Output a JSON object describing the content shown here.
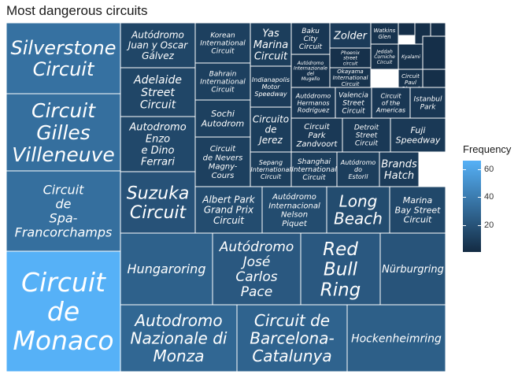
{
  "chart_data": {
    "type": "treemap",
    "title": "Most dangerous circuits",
    "legend": {
      "title": "Frequency",
      "ticks": [
        20,
        40,
        60
      ],
      "min": 1,
      "max": 66,
      "placement": "right"
    },
    "colors": {
      "low": "#132b43",
      "high": "#56b1f7",
      "border": "#ffffff"
    },
    "items": [
      {
        "name": "Circuit de Monaco",
        "value": 66
      },
      {
        "name": "Silverstone Circuit",
        "value": 35
      },
      {
        "name": "Circuit Gilles Villeneuve",
        "value": 34
      },
      {
        "name": "Circuit de Spa-Francorchamps",
        "value": 34
      },
      {
        "name": "Autodromo Nazionale di Monza",
        "value": 30
      },
      {
        "name": "Circuit de Barcelona-Catalunya",
        "value": 28
      },
      {
        "name": "Hockenheimring",
        "value": 26
      },
      {
        "name": "Hungaroring",
        "value": 27
      },
      {
        "name": "Autódromo José Carlos Pace",
        "value": 23
      },
      {
        "name": "Red Bull Ring",
        "value": 23
      },
      {
        "name": "Nürburgring",
        "value": 21
      },
      {
        "name": "Suzuka Circuit",
        "value": 20
      },
      {
        "name": "Albert Park Grand Prix Circuit",
        "value": 17
      },
      {
        "name": "Autódromo Internacional Nelson Piquet",
        "value": 17
      },
      {
        "name": "Long Beach",
        "value": 17
      },
      {
        "name": "Marina Bay Street Circuit",
        "value": 15
      },
      {
        "name": "Autódromo Juan y Oscar Gálvez",
        "value": 14
      },
      {
        "name": "Adelaide Street Circuit",
        "value": 14
      },
      {
        "name": "Autodromo Enzo e Dino Ferrari",
        "value": 15
      },
      {
        "name": "Korean International Circuit",
        "value": 11
      },
      {
        "name": "Bahrain International Circuit",
        "value": 11
      },
      {
        "name": "Sochi Autodrom",
        "value": 11
      },
      {
        "name": "Circuit de Nevers Magny-Cours",
        "value": 11
      },
      {
        "name": "Yas Marina Circuit",
        "value": 10
      },
      {
        "name": "Indianapolis Motor Speedway",
        "value": 9
      },
      {
        "name": "Circuito de Jerez",
        "value": 10
      },
      {
        "name": "Sepang International Circuit",
        "value": 10
      },
      {
        "name": "Shanghai International Circuit",
        "value": 10
      },
      {
        "name": "Autódromo do Estoril",
        "value": 10
      },
      {
        "name": "Brands Hatch",
        "value": 9
      },
      {
        "name": "Baku City Circuit",
        "value": 7
      },
      {
        "name": "Autódromo Internazionale del Mugello",
        "value": 5
      },
      {
        "name": "Zolder",
        "value": 9
      },
      {
        "name": "Phoenix street circuit",
        "value": 4
      },
      {
        "name": "Okayama International Circuit",
        "value": 5
      },
      {
        "name": "Watkins Glen",
        "value": 5
      },
      {
        "name": "Jeddah Corniche Circuit",
        "value": 4
      },
      {
        "name": "Kyalami",
        "value": 4
      },
      {
        "name": "Circuit Paul Ricard",
        "value": 5
      },
      {
        "name": "Autódromo Hermanos Rodríguez",
        "value": 7
      },
      {
        "name": "Valencia Street Circuit",
        "value": 7
      },
      {
        "name": "Circuit of the Americas",
        "value": 7
      },
      {
        "name": "Istanbul Park",
        "value": 7
      },
      {
        "name": "Circuit Park Zandvoort",
        "value": 8
      },
      {
        "name": "Detroit Street Circuit",
        "value": 8
      },
      {
        "name": "Fuji Speedway",
        "value": 8
      },
      {
        "name": "",
        "value": 3
      },
      {
        "name": "",
        "value": 3
      },
      {
        "name": "",
        "value": 3
      },
      {
        "name": "",
        "value": 3
      },
      {
        "name": "",
        "value": 3
      }
    ]
  }
}
